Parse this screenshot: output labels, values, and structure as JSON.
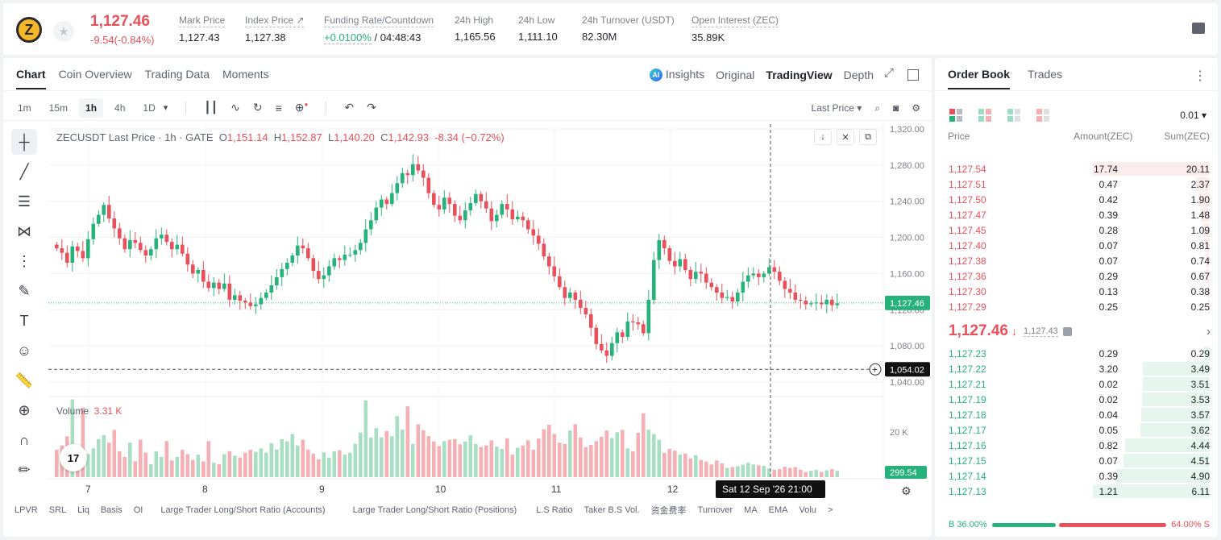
{
  "header": {
    "coin_logo": "Z",
    "fav_icon": "star-icon",
    "last_price": "1,127.46",
    "change": "-9.54(-0.84%)",
    "stats": [
      {
        "label": "Mark Price",
        "value": "1,127.43"
      },
      {
        "label": "Index Price ↗",
        "value": "1,127.38"
      },
      {
        "label": "Funding Rate/Countdown",
        "value_green": "+0.0100%",
        "value": " / 04:48:43"
      },
      {
        "label": "24h High",
        "value": "1,165.56"
      },
      {
        "label": "24h Low",
        "value": "1,111.10"
      },
      {
        "label": "24h Turnover (USDT)",
        "value": "82.30M"
      },
      {
        "label": "Open Interest (ZEC)",
        "value": "35.89K"
      }
    ]
  },
  "chart_tabs": [
    "Chart",
    "Coin Overview",
    "Trading Data",
    "Moments"
  ],
  "view_tabs": {
    "ai": "AI",
    "insights": "Insights",
    "original": "Original",
    "tradingview": "TradingView",
    "depth": "Depth"
  },
  "toolbar": {
    "timeframes": [
      "1m",
      "15m",
      "1h",
      "4h",
      "1D"
    ],
    "active_timeframe": "1h",
    "dropdown": "▾",
    "price_type": "Last Price ▾"
  },
  "chart_legend": {
    "symbol": "ZECUSDT Last Price · 1h · GATE",
    "o_label": "O",
    "o": "1,151.14",
    "h_label": "H",
    "h": "1,152.87",
    "l_label": "L",
    "l": "1,140.20",
    "c_label": "C",
    "c": "1,142.93",
    "chg": "-8.34 (−0.72%)"
  },
  "volume_legend": {
    "label": "Volume",
    "value": "3.31 K"
  },
  "tv_logo": "17",
  "chart_data": {
    "type": "candlestick",
    "price_axis": {
      "min": 1040,
      "max": 1320,
      "ticks": [
        "1,320.00",
        "1,280.00",
        "1,240.00",
        "1,200.00",
        "1,160.00",
        "1,120.00",
        "1,080.00",
        "1,040.00"
      ]
    },
    "time_axis": {
      "ticks": [
        "7",
        "8",
        "9",
        "10",
        "11",
        "12"
      ]
    },
    "volume_axis": {
      "ticks": [
        "20 K"
      ]
    },
    "last_price_label": "1,127.46",
    "crosshair_price_label": "1,054.02",
    "crosshair_time_label": "Sat 12 Sep '26   21:00",
    "volume_last_label": "299.54",
    "closes": [
      1188,
      1183,
      1172,
      1190,
      1185,
      1177,
      1198,
      1215,
      1225,
      1236,
      1221,
      1210,
      1199,
      1187,
      1197,
      1194,
      1186,
      1180,
      1187,
      1199,
      1203,
      1195,
      1187,
      1192,
      1182,
      1170,
      1160,
      1164,
      1151,
      1144,
      1150,
      1143,
      1149,
      1131,
      1136,
      1130,
      1128,
      1124,
      1126,
      1133,
      1139,
      1147,
      1156,
      1165,
      1172,
      1180,
      1191,
      1188,
      1177,
      1163,
      1154,
      1158,
      1168,
      1177,
      1175,
      1181,
      1181,
      1186,
      1194,
      1209,
      1219,
      1233,
      1242,
      1237,
      1249,
      1260,
      1271,
      1269,
      1281,
      1274,
      1266,
      1249,
      1236,
      1231,
      1244,
      1237,
      1224,
      1219,
      1230,
      1238,
      1248,
      1240,
      1232,
      1218,
      1225,
      1237,
      1231,
      1220,
      1223,
      1219,
      1209,
      1202,
      1193,
      1179,
      1168,
      1157,
      1145,
      1133,
      1139,
      1131,
      1122,
      1115,
      1100,
      1082,
      1075,
      1069,
      1083,
      1095,
      1090,
      1107,
      1106,
      1104,
      1094,
      1131,
      1175,
      1197,
      1188,
      1174,
      1168,
      1176,
      1164,
      1154,
      1162,
      1160,
      1150,
      1145,
      1139,
      1133,
      1134,
      1129,
      1139,
      1151,
      1158,
      1160,
      1156,
      1160,
      1167,
      1162,
      1152,
      1143,
      1139,
      1131,
      1130,
      1126,
      1127,
      1128,
      1126,
      1131,
      1125,
      1127
    ],
    "volumes": [
      9.5,
      11.0,
      14.2,
      27.0,
      9.0,
      24.2,
      8.0,
      10.0,
      13.2,
      14.6,
      12.0,
      16.4,
      9.0,
      7.0,
      12.0,
      5.5,
      13.0,
      8.5,
      4.5,
      9.0,
      7.0,
      12.5,
      5.8,
      7.0,
      9.5,
      8.0,
      6.0,
      7.8,
      5.5,
      12.5,
      5.0,
      4.5,
      8.0,
      9.0,
      7.5,
      6.8,
      8.5,
      9.5,
      8.8,
      10.0,
      8.5,
      11.8,
      9.6,
      13.2,
      12.5,
      15.0,
      11.0,
      13.0,
      9.6,
      8.2,
      6.2,
      8.6,
      6.8,
      9.0,
      9.4,
      7.8,
      8.5,
      11.6,
      15.5,
      26.6,
      13.8,
      17.0,
      13.8,
      16.0,
      14.2,
      21.2,
      16.5,
      24.6,
      11.5,
      18.4,
      16.3,
      14.3,
      12.4,
      10.8,
      12.5,
      13.0,
      13.2,
      11.4,
      12.4,
      14.5,
      11.5,
      10.5,
      11.0,
      12.8,
      10.6,
      9.8,
      13.5,
      7.8,
      10.2,
      11.0,
      12.8,
      9.5,
      13.4,
      16.6,
      18.2,
      15.0,
      12.0,
      11.5,
      16.2,
      18.4,
      13.8,
      10.4,
      11.2,
      12.5,
      14.0,
      16.2,
      13.6,
      15.6,
      16.4,
      10.0,
      9.0,
      15.4,
      22.2,
      16.5,
      15.0,
      13.0,
      8.4,
      9.8,
      9.2,
      7.8,
      8.2,
      6.5,
      7.6,
      6.0,
      5.4,
      4.4,
      5.8,
      4.8,
      3.2,
      3.5,
      3.8,
      4.3,
      5.0,
      4.4,
      4.1,
      3.9,
      3.0,
      2.6,
      2.8,
      3.6,
      3.2,
      3.5,
      2.6,
      1.8,
      2.2,
      2.5,
      1.8,
      2.4,
      2.8,
      2.2,
      1.2
    ]
  },
  "indicators": [
    "LPVR",
    "SRL",
    "Liq",
    "Basis",
    "OI",
    "Large Trader Long/Short Ratio (Accounts)",
    "Large Trader Long/Short Ratio (Positions)",
    "L.S Ratio",
    "Taker B.S Vol.",
    "资金费率",
    "Turnover",
    "MA",
    "EMA",
    "Volu",
    ">"
  ],
  "order_book": {
    "tabs": [
      "Order Book",
      "Trades"
    ],
    "precision": "0.01 ▾",
    "columns": [
      "Price",
      "Amount(ZEC)",
      "Sum(ZEC)"
    ],
    "asks": [
      {
        "price": "1,127.54",
        "amount": "17.74",
        "sum": "20.11",
        "depth": 1.0
      },
      {
        "price": "1,127.51",
        "amount": "0.47",
        "sum": "2.37",
        "depth": 0.118
      },
      {
        "price": "1,127.50",
        "amount": "0.42",
        "sum": "1.90",
        "depth": 0.094
      },
      {
        "price": "1,127.47",
        "amount": "0.39",
        "sum": "1.48",
        "depth": 0.074
      },
      {
        "price": "1,127.45",
        "amount": "0.28",
        "sum": "1.09",
        "depth": 0.054
      },
      {
        "price": "1,127.40",
        "amount": "0.07",
        "sum": "0.81",
        "depth": 0.04
      },
      {
        "price": "1,127.38",
        "amount": "0.07",
        "sum": "0.74",
        "depth": 0.037
      },
      {
        "price": "1,127.36",
        "amount": "0.29",
        "sum": "0.67",
        "depth": 0.033
      },
      {
        "price": "1,127.30",
        "amount": "0.13",
        "sum": "0.38",
        "depth": 0.019
      },
      {
        "price": "1,127.29",
        "amount": "0.25",
        "sum": "0.25",
        "depth": 0.012
      }
    ],
    "mid": {
      "price": "1,127.46",
      "arrow": "↓",
      "mark": "1,127.43",
      "chevron": "›"
    },
    "bids": [
      {
        "price": "1,127.23",
        "amount": "0.29",
        "sum": "0.29",
        "depth": 0.047
      },
      {
        "price": "1,127.22",
        "amount": "3.20",
        "sum": "3.49",
        "depth": 0.571
      },
      {
        "price": "1,127.21",
        "amount": "0.02",
        "sum": "3.51",
        "depth": 0.574
      },
      {
        "price": "1,127.19",
        "amount": "0.02",
        "sum": "3.53",
        "depth": 0.578
      },
      {
        "price": "1,127.18",
        "amount": "0.04",
        "sum": "3.57",
        "depth": 0.584
      },
      {
        "price": "1,127.17",
        "amount": "0.05",
        "sum": "3.62",
        "depth": 0.592
      },
      {
        "price": "1,127.16",
        "amount": "0.82",
        "sum": "4.44",
        "depth": 0.727
      },
      {
        "price": "1,127.15",
        "amount": "0.07",
        "sum": "4.51",
        "depth": 0.738
      },
      {
        "price": "1,127.14",
        "amount": "0.39",
        "sum": "4.90",
        "depth": 0.802
      },
      {
        "price": "1,127.13",
        "amount": "1.21",
        "sum": "6.11",
        "depth": 1.0
      }
    ],
    "ratio": {
      "buy": "B 36.00%",
      "sell": "64.00% S",
      "buy_fraction": 0.36
    }
  },
  "colors": {
    "up": "#26b27a",
    "down": "#e8505b",
    "up_vol": "#a8dfc4",
    "down_vol": "#f4b0b5"
  }
}
